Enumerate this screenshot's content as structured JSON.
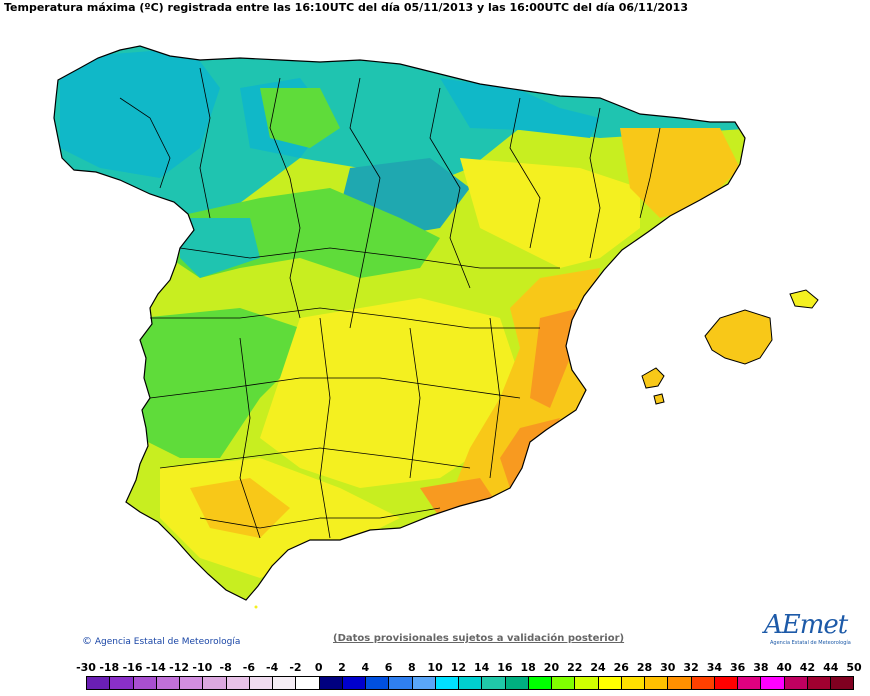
{
  "title": "Temperatura máxima (ºC) registrada entre las 16:10UTC del día 05/11/2013 y las 16:00UTC del día 06/11/2013",
  "footer": {
    "credit": "Agencia Estatal de Meteorología",
    "disclaimer": "(Datos provisionales sujetos a validación posterior)",
    "logo_text": "AEmet",
    "logo_sub": "Agencia Estatal de Meteorología"
  },
  "legend": {
    "labels": [
      "-30",
      "-18",
      "-16",
      "-14",
      "-12",
      "-10",
      "-8",
      "-6",
      "-4",
      "-2",
      "0",
      "2",
      "4",
      "6",
      "8",
      "10",
      "12",
      "14",
      "16",
      "18",
      "20",
      "22",
      "24",
      "26",
      "28",
      "30",
      "32",
      "34",
      "36",
      "38",
      "40",
      "42",
      "44",
      "50"
    ],
    "colors": [
      "#6a1fb4",
      "#8a2fc8",
      "#a84fd0",
      "#c070d8",
      "#d28ee0",
      "#dca8e0",
      "#e8c2e8",
      "#f0dcf0",
      "#f6eef6",
      "#ffffff",
      "#000080",
      "#0000cd",
      "#0050e0",
      "#2f7ff0",
      "#5aa6f8",
      "#00e0ff",
      "#00d0d0",
      "#20c8a8",
      "#00b080",
      "#00ff00",
      "#80ff00",
      "#d0ff00",
      "#ffff00",
      "#ffe000",
      "#ffc000",
      "#ff9000",
      "#ff4000",
      "#ff0000",
      "#e00080",
      "#ff00ff",
      "#c00060",
      "#a00030",
      "#800020"
    ]
  },
  "map": {
    "colors": {
      "cool": "#1fc4b0",
      "cool_dark": "#10b8c8",
      "green": "#5fdc3a",
      "yellow_green": "#c8ee20",
      "yellow": "#f4f020",
      "gold": "#f8c818",
      "orange": "#f89a20",
      "sea": "#ffffff",
      "border": "#000000"
    }
  }
}
